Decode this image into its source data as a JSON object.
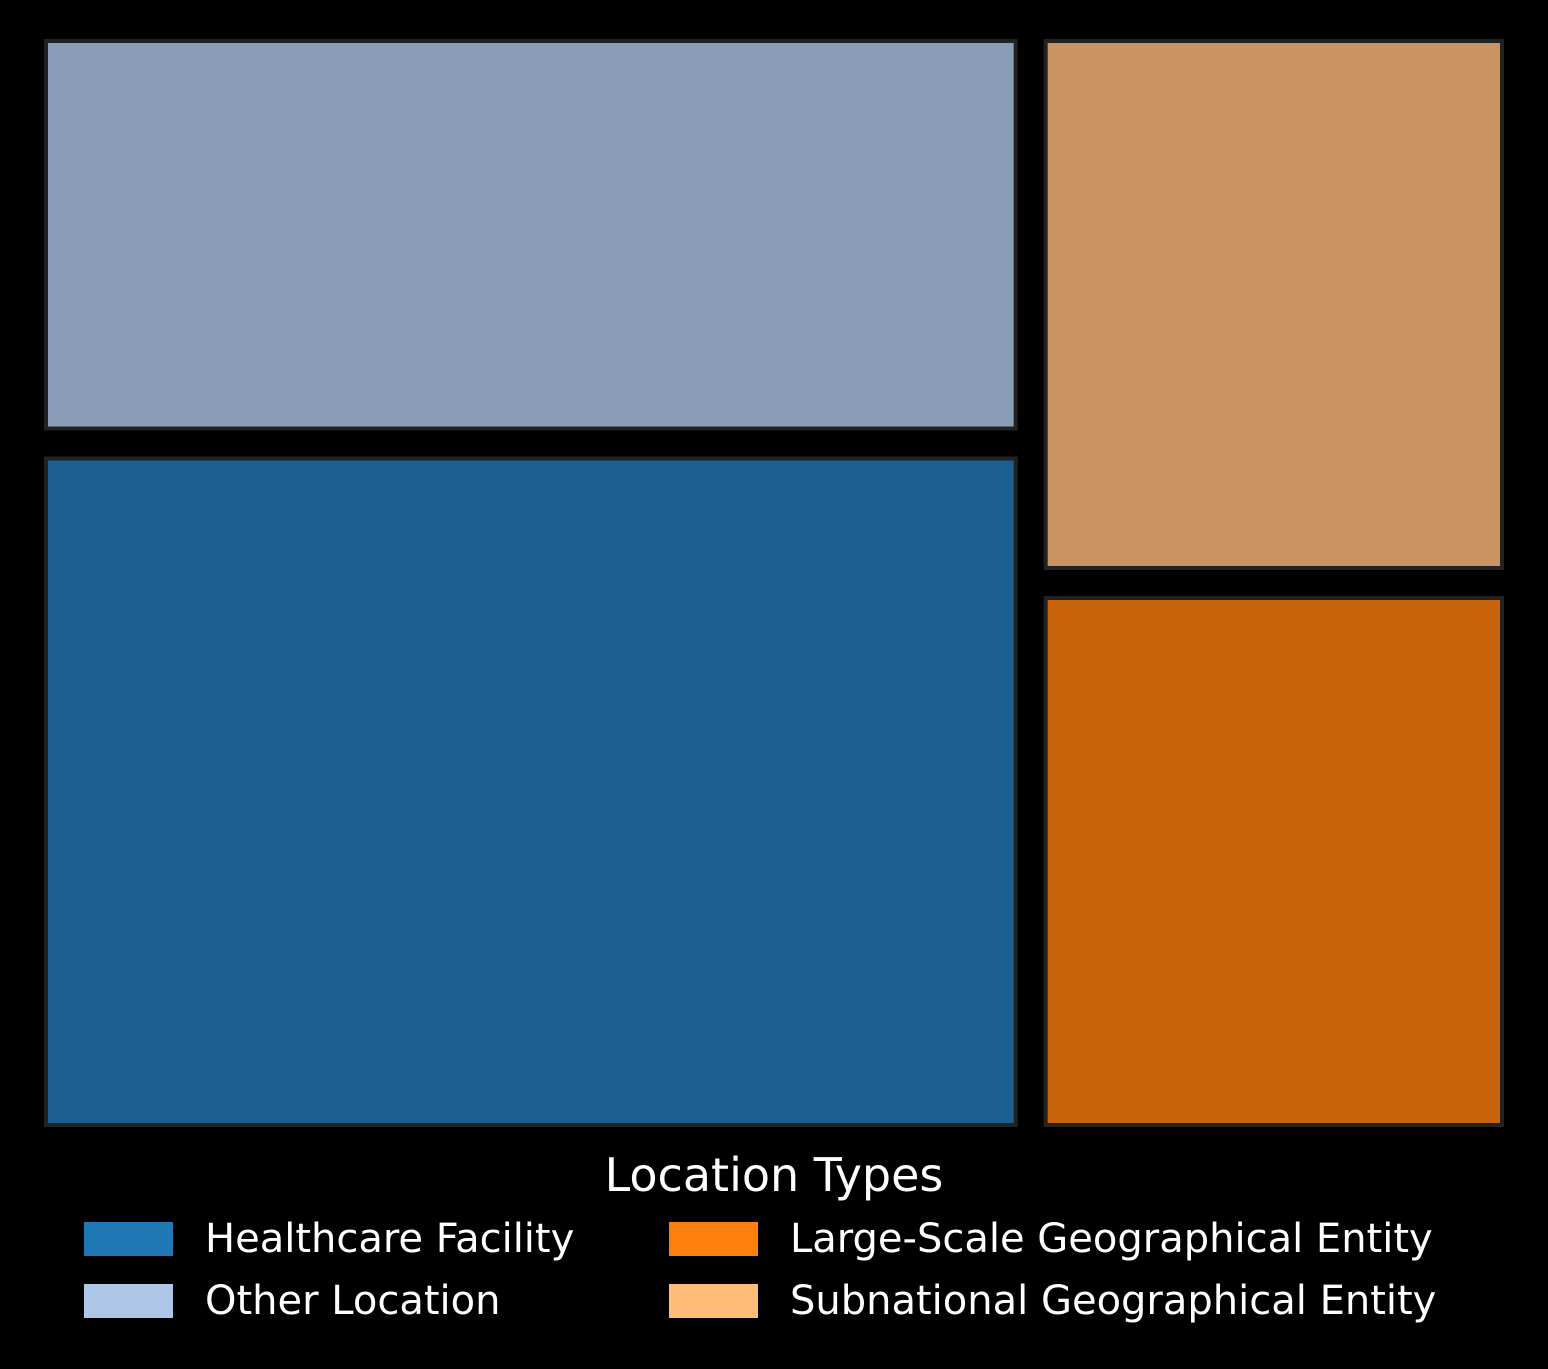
{
  "chart_data": {
    "type": "treemap",
    "title": "",
    "legend": {
      "title": "Location Types",
      "placement": "bottom-center",
      "columns": 2,
      "entries": [
        {
          "label": "Healthcare Facility",
          "color": "#1f77b4"
        },
        {
          "label": "Other Location",
          "color": "#aec7e8"
        },
        {
          "label": "Large-Scale Geographical Entity",
          "color": "#ff7f0e"
        },
        {
          "label": "Subnational Geographical Entity",
          "color": "#ffbb78"
        }
      ]
    },
    "tiles": [
      {
        "label": "Healthcare Facility",
        "value": 43,
        "color": "#1a5f8f"
      },
      {
        "label": "Other Location",
        "value": 25,
        "color": "#8a9eb8"
      },
      {
        "label": "Large-Scale Geographical Entity",
        "value": 16,
        "color": "#c9640c"
      },
      {
        "label": "Subnational Geographical Entity",
        "value": 16,
        "color": "#c99461"
      }
    ],
    "background": "#000000"
  }
}
